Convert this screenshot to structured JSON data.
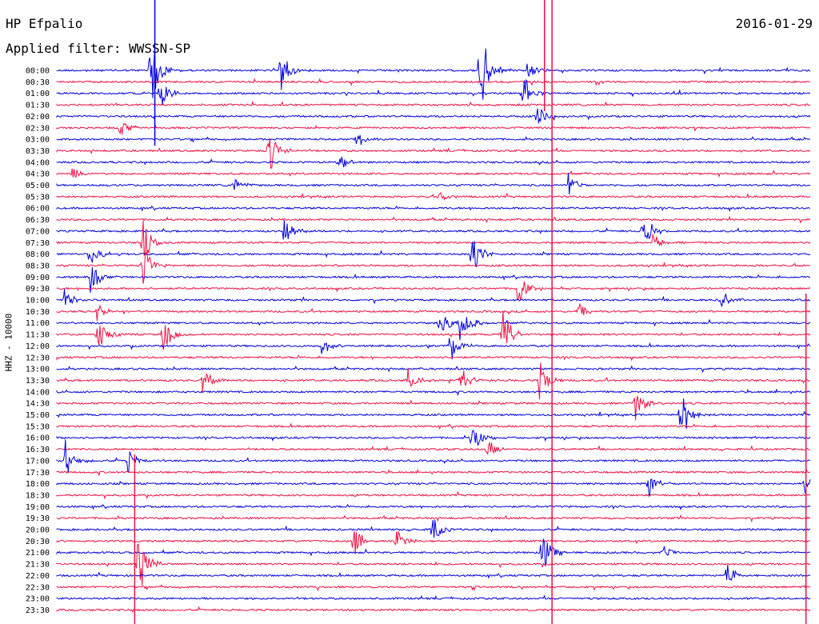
{
  "header": {
    "station": "HP Efpalio",
    "date": "2016-01-29",
    "filter": "Applied filter: WWSSN-SP"
  },
  "axis": {
    "ylabel": "HHZ - 10000"
  },
  "colors": {
    "blue": "#0000dd",
    "red": "#ee1144"
  },
  "chart_data": {
    "type": "line",
    "subtype": "helicorder",
    "channel": "HHZ",
    "scale": 10000,
    "rows": [
      "00:00",
      "00:30",
      "01:00",
      "01:30",
      "02:00",
      "02:30",
      "03:00",
      "03:30",
      "04:00",
      "04:30",
      "05:00",
      "05:30",
      "06:00",
      "06:30",
      "07:00",
      "07:30",
      "08:00",
      "08:30",
      "09:00",
      "09:30",
      "10:00",
      "10:30",
      "11:00",
      "11:30",
      "12:00",
      "12:30",
      "13:00",
      "13:30",
      "14:00",
      "14:30",
      "15:00",
      "15:30",
      "16:00",
      "16:30",
      "17:00",
      "17:30",
      "18:00",
      "18:30",
      "19:00",
      "19:30",
      "20:00",
      "20:30",
      "21:00",
      "21:30",
      "22:00",
      "22:30",
      "23:00",
      "23:30"
    ],
    "row_colors_cycle": [
      "blue",
      "red"
    ],
    "events": [
      {
        "row": 0,
        "minute": 3.7,
        "amp": 60
      },
      {
        "row": 0,
        "minute": 8.9,
        "amp": 30
      },
      {
        "row": 0,
        "minute": 16.8,
        "amp": 75
      },
      {
        "row": 0,
        "minute": 18.7,
        "amp": 14
      },
      {
        "row": 2,
        "minute": 4.1,
        "amp": 25
      },
      {
        "row": 2,
        "minute": 18.5,
        "amp": 30
      },
      {
        "row": 4,
        "minute": 19.1,
        "amp": 18
      },
      {
        "row": 5,
        "minute": 2.5,
        "amp": 14
      },
      {
        "row": 6,
        "minute": 11.9,
        "amp": 10
      },
      {
        "row": 7,
        "minute": 8.4,
        "amp": 38
      },
      {
        "row": 8,
        "minute": 11.2,
        "amp": 12
      },
      {
        "row": 9,
        "minute": 0.6,
        "amp": 10
      },
      {
        "row": 10,
        "minute": 7.0,
        "amp": 12
      },
      {
        "row": 10,
        "minute": 20.3,
        "amp": 20
      },
      {
        "row": 11,
        "minute": 15.2,
        "amp": 10
      },
      {
        "row": 14,
        "minute": 9.0,
        "amp": 22
      },
      {
        "row": 14,
        "minute": 23.3,
        "amp": 30
      },
      {
        "row": 15,
        "minute": 3.4,
        "amp": 30
      },
      {
        "row": 15,
        "minute": 23.7,
        "amp": 14
      },
      {
        "row": 16,
        "minute": 1.3,
        "amp": 20
      },
      {
        "row": 16,
        "minute": 16.5,
        "amp": 30
      },
      {
        "row": 17,
        "minute": 3.4,
        "amp": 30
      },
      {
        "row": 18,
        "minute": 1.3,
        "amp": 25
      },
      {
        "row": 19,
        "minute": 18.3,
        "amp": 25
      },
      {
        "row": 20,
        "minute": 0.3,
        "amp": 14
      },
      {
        "row": 20,
        "minute": 26.4,
        "amp": 16
      },
      {
        "row": 21,
        "minute": 1.6,
        "amp": 12
      },
      {
        "row": 21,
        "minute": 20.7,
        "amp": 12
      },
      {
        "row": 22,
        "minute": 16.0,
        "amp": 40
      },
      {
        "row": 22,
        "minute": 15.2,
        "amp": 25
      },
      {
        "row": 23,
        "minute": 1.6,
        "amp": 25
      },
      {
        "row": 23,
        "minute": 4.2,
        "amp": 30
      },
      {
        "row": 23,
        "minute": 17.7,
        "amp": 40
      },
      {
        "row": 24,
        "minute": 10.5,
        "amp": 14
      },
      {
        "row": 24,
        "minute": 15.6,
        "amp": 25
      },
      {
        "row": 27,
        "minute": 5.8,
        "amp": 16
      },
      {
        "row": 27,
        "minute": 13.9,
        "amp": 20
      },
      {
        "row": 27,
        "minute": 16.0,
        "amp": 22
      },
      {
        "row": 27,
        "minute": 19.2,
        "amp": 28
      },
      {
        "row": 29,
        "minute": 23.0,
        "amp": 25
      },
      {
        "row": 30,
        "minute": 24.8,
        "amp": 40
      },
      {
        "row": 32,
        "minute": 16.5,
        "amp": 22
      },
      {
        "row": 33,
        "minute": 17.1,
        "amp": 18
      },
      {
        "row": 34,
        "minute": 0.3,
        "amp": 30
      },
      {
        "row": 34,
        "minute": 2.8,
        "amp": 18
      },
      {
        "row": 36,
        "minute": 23.5,
        "amp": 20
      },
      {
        "row": 36,
        "minute": 29.7,
        "amp": 16
      },
      {
        "row": 40,
        "minute": 14.9,
        "amp": 22
      },
      {
        "row": 41,
        "minute": 11.8,
        "amp": 25
      },
      {
        "row": 41,
        "minute": 13.5,
        "amp": 18
      },
      {
        "row": 42,
        "minute": 19.3,
        "amp": 32
      },
      {
        "row": 42,
        "minute": 24.1,
        "amp": 12
      },
      {
        "row": 43,
        "minute": 3.2,
        "amp": 55
      },
      {
        "row": 44,
        "minute": 26.6,
        "amp": 18
      },
      {
        "row": 44,
        "minute": 30.1,
        "amp": 12
      }
    ],
    "long_spikes": [
      {
        "minute": 3.9,
        "row_from": 0,
        "row_to": 6,
        "color": "blue"
      },
      {
        "minute": 3.1,
        "row_from": 34,
        "row_to": 47,
        "color": "red"
      },
      {
        "minute": 19.7,
        "row_from": 0,
        "row_to": 47,
        "color": "red"
      },
      {
        "minute": 19.4,
        "row_from": 0,
        "row_to": 3,
        "color": "red"
      },
      {
        "minute": 29.8,
        "row_from": 20,
        "row_to": 47,
        "color": "red"
      }
    ]
  }
}
